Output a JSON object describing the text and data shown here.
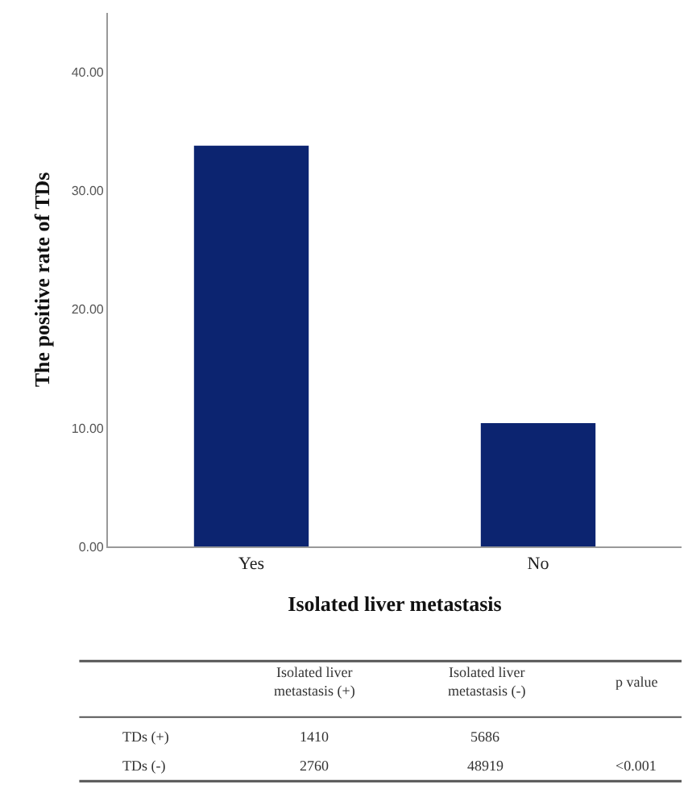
{
  "chart_data": {
    "type": "bar",
    "xlabel": "Isolated liver metastasis",
    "ylabel": "The positive rate of TDs",
    "categories": [
      "Yes",
      "No"
    ],
    "values": [
      33.8,
      10.4
    ],
    "color": "#0c2470",
    "ylim": [
      0,
      45
    ],
    "yticks": [
      {
        "value": 0,
        "label": "0.00"
      },
      {
        "value": 10,
        "label": "10.00"
      },
      {
        "value": 20,
        "label": "20.00"
      },
      {
        "value": 30,
        "label": "30.00"
      },
      {
        "value": 40,
        "label": "40.00"
      }
    ],
    "legend": false,
    "annotations": [
      "Isolated liver metastasis (+)",
      "Isolated liver metastasis (-)",
      "p value",
      "TDs (+)",
      "1410",
      "5686",
      "TDs (-)",
      "2760",
      "48919",
      "<0.001"
    ]
  }
}
